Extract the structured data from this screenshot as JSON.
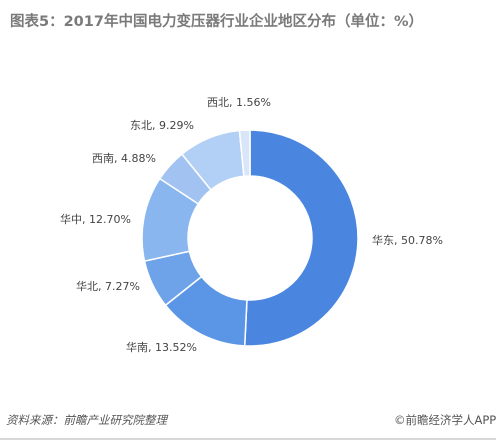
{
  "title": "图表5：2017年中国电力变压器行业企业地区分布（单位：%）",
  "source": "资料来源：前瞻产业研究院整理",
  "wechat_account": "©前瞻经济学人APP",
  "chart_data": {
    "type": "pie",
    "donut": true,
    "categories": [
      "华东",
      "华南",
      "华北",
      "华中",
      "西南",
      "东北",
      "西北"
    ],
    "values": [
      50.78,
      13.52,
      7.27,
      12.7,
      4.88,
      9.29,
      1.56
    ],
    "labels": [
      "华东, 50.78%",
      "华南, 13.52%",
      "华北, 7.27%",
      "华中, 12.70%",
      "西南, 4.88%",
      "东北, 9.29%",
      "西北, 1.56%"
    ],
    "colors": [
      "#4a86e0",
      "#5b95e6",
      "#6ea3ea",
      "#8ab6ef",
      "#a2c3f2",
      "#b2cff5",
      "#d9e6fa"
    ],
    "start": "12 o'clock",
    "direction": "clockwise",
    "legend": "none"
  }
}
